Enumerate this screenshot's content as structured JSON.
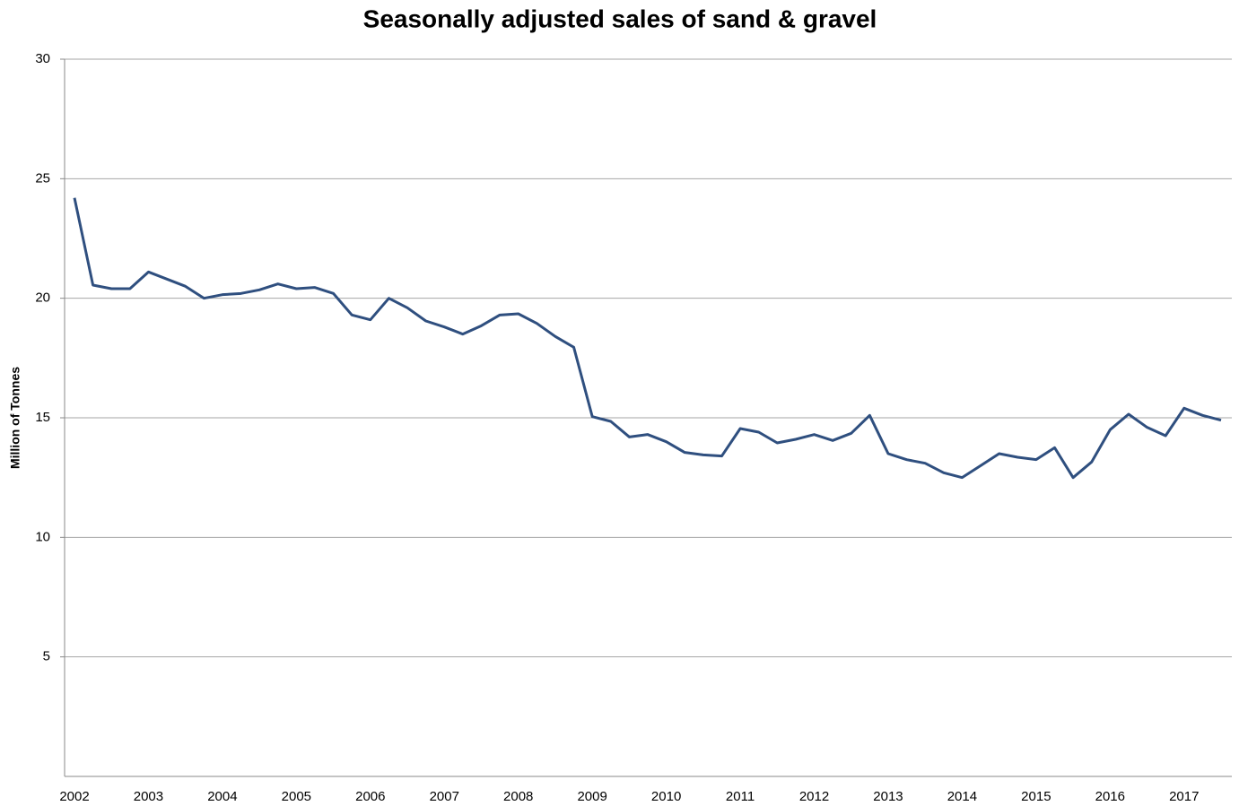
{
  "chart_data": {
    "type": "line",
    "title": "Seasonally adjusted sales of sand & gravel",
    "y_label": "Million of Tonnes",
    "categories": [
      "2002",
      null,
      null,
      null,
      "2003",
      null,
      null,
      null,
      "2004",
      null,
      null,
      null,
      "2005",
      null,
      null,
      null,
      "2006",
      null,
      null,
      null,
      "2007",
      null,
      null,
      null,
      "2008",
      null,
      null,
      null,
      "2009",
      null,
      null,
      null,
      "2010",
      null,
      null,
      null,
      "2011",
      null,
      null,
      null,
      "2012",
      null,
      null,
      null,
      "2013",
      null,
      null,
      null,
      "2014",
      null,
      null,
      null,
      "2015",
      null,
      null,
      null,
      "2016",
      null,
      null,
      null,
      "2017",
      null,
      null
    ],
    "series": [
      {
        "color": "#2f4f7f",
        "values": [
          24.2,
          20.55,
          20.4,
          20.4,
          21.1,
          20.8,
          20.5,
          20.0,
          20.15,
          20.2,
          20.35,
          20.6,
          20.4,
          20.45,
          20.2,
          19.3,
          19.1,
          20.0,
          19.6,
          19.05,
          18.8,
          18.5,
          18.85,
          19.3,
          19.35,
          18.95,
          18.4,
          17.95,
          15.05,
          14.85,
          14.2,
          14.3,
          14.0,
          13.55,
          13.45,
          13.4,
          14.55,
          14.4,
          13.95,
          14.1,
          14.3,
          14.05,
          14.35,
          15.1,
          13.5,
          13.25,
          13.1,
          12.7,
          12.5,
          13.0,
          13.5,
          13.35,
          13.25,
          13.75,
          12.5,
          13.15,
          14.5,
          15.15,
          14.6,
          14.25,
          15.4,
          15.1,
          14.9
        ]
      }
    ],
    "ylim": [
      0,
      30
    ],
    "yticks": [
      5,
      10,
      15,
      20,
      25,
      30
    ],
    "grid": true
  }
}
